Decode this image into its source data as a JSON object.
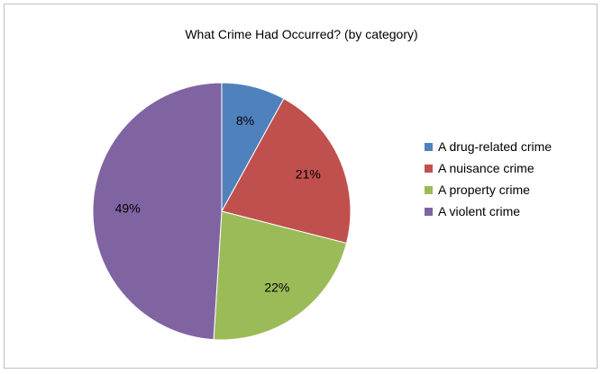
{
  "chart_data": {
    "type": "pie",
    "title": "What Crime Had Occurred? (by category)",
    "categories": [
      "A drug-related crime",
      "A nuisance crime",
      "A property crime",
      "A violent crime"
    ],
    "values": [
      8,
      21,
      22,
      49
    ],
    "labels": [
      "8%",
      "21%",
      "22%",
      "49%"
    ],
    "colors": [
      "#4f81bd",
      "#c0504d",
      "#9bbb59",
      "#8064a2"
    ],
    "legend": "right"
  }
}
